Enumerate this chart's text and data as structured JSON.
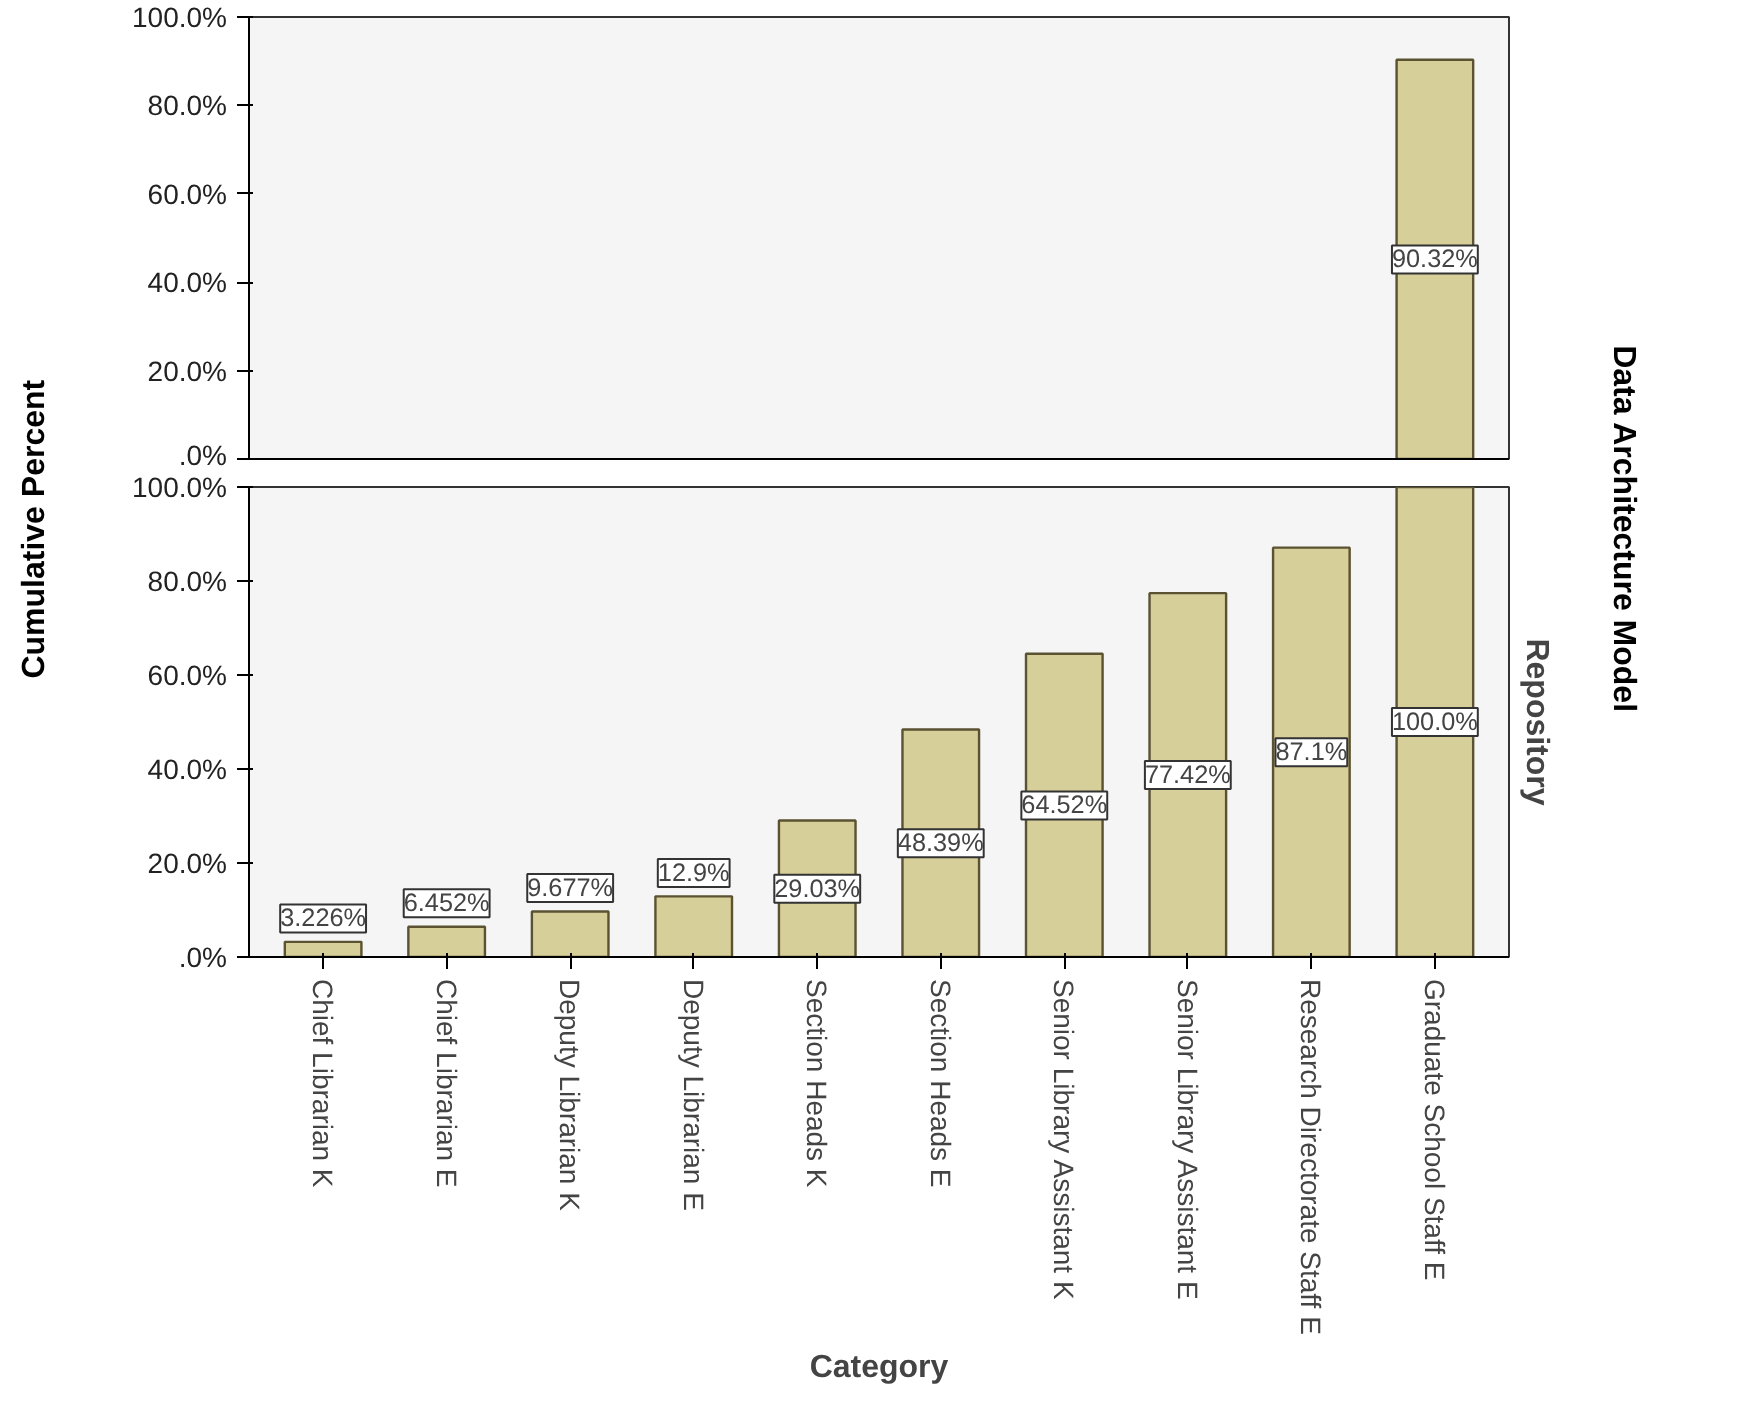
{
  "chart_data": [
    {
      "type": "bar",
      "categories": [
        null,
        null,
        null,
        null,
        null,
        null,
        null,
        null,
        null,
        null
      ],
      "values": [
        null,
        null,
        null,
        null,
        null,
        null,
        null,
        null,
        null,
        90.32
      ],
      "value_labels": [
        null,
        null,
        null,
        null,
        null,
        null,
        null,
        null,
        null,
        "90.32%"
      ],
      "color": "#d6cf9a",
      "ylim": [
        0,
        100
      ],
      "yticks": [
        {
          "value": 0,
          "label": ".0%"
        },
        {
          "value": 20,
          "label": "20.0%"
        },
        {
          "value": 40,
          "label": "40.0%"
        },
        {
          "value": 60,
          "label": "60.0%"
        },
        {
          "value": 80,
          "label": "80.0%"
        },
        {
          "value": 100,
          "label": "100.0%"
        }
      ],
      "tick_labels": "y",
      "grid": false
    },
    {
      "type": "bar",
      "title": "Repository",
      "xlabel": "Category",
      "ylabel": "Cumulative Percent",
      "annotations": [
        "Data Architecture Model"
      ],
      "categories": [
        "Chief Librarian K",
        "Chief Librarian E",
        "Deputy Librarian K",
        "Deputy Librarian E",
        "Section Heads K",
        "Section Heads E",
        "Senior Library Assistant K",
        "Senior Library Assistant E",
        "Research Directorate Staff E",
        "Graduate School Staff E"
      ],
      "values": [
        3.226,
        6.452,
        9.677,
        12.9,
        29.03,
        48.39,
        64.52,
        77.42,
        87.1,
        100
      ],
      "value_labels": [
        "3.226%",
        "6.452%",
        "9.677%",
        "12.9%",
        "29.03%",
        "48.39%",
        "64.52%",
        "77.42%",
        "87.1%",
        "100.0%"
      ],
      "color": "#d6cf9a",
      "ylim": [
        0,
        100
      ],
      "yticks": [
        {
          "value": 0,
          "label": ".0%"
        },
        {
          "value": 20,
          "label": "20.0%"
        },
        {
          "value": 40,
          "label": "40.0%"
        },
        {
          "value": 60,
          "label": "60.0%"
        },
        {
          "value": 80,
          "label": "80.0%"
        },
        {
          "value": 100,
          "label": "100.0%"
        }
      ],
      "grid": false
    }
  ]
}
